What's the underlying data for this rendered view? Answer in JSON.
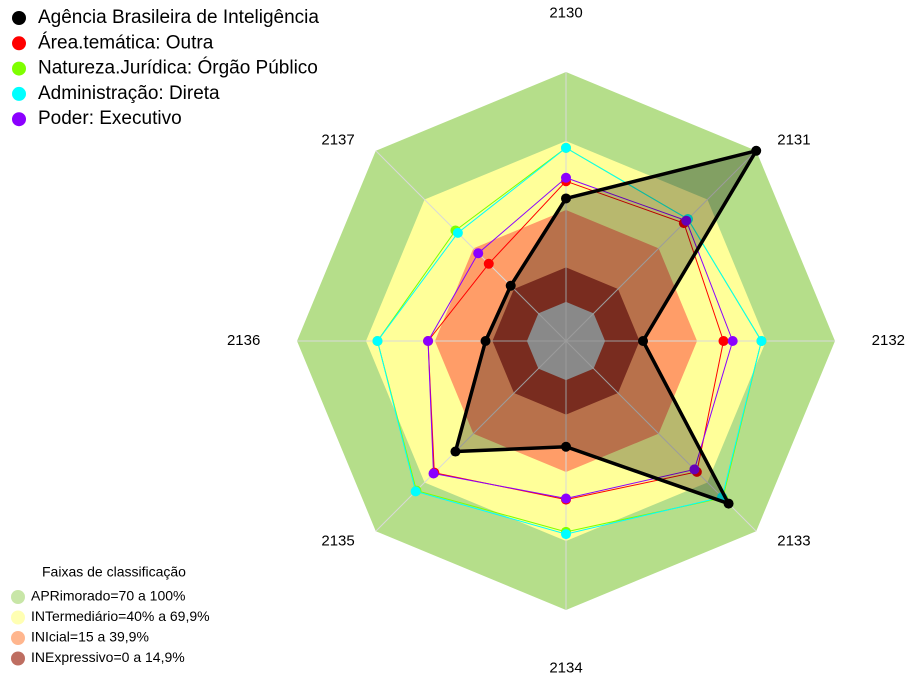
{
  "chart_data": {
    "type": "radar",
    "categories": [
      "2130",
      "2131",
      "2132",
      "2133",
      "2134",
      "2135",
      "2136",
      "2137"
    ],
    "rlim": [
      -17,
      100
    ],
    "series": [
      {
        "name": "Agência Brasileira de Inteligência",
        "color": "#000000",
        "values": [
          45,
          100,
          16.5,
          83,
          29,
          51,
          18,
          17
        ]
      },
      {
        "name": "Área.temática: Outra",
        "color": "#ff0000",
        "values": [
          52.5,
          55.5,
          51.5,
          63.5,
          52,
          64,
          43,
          30.5
        ]
      },
      {
        "name": "Natureza.Jurídica: Órgão Público",
        "color": "#7fff00",
        "values": [
          67,
          58,
          68,
          79.5,
          66,
          75,
          65,
          51
        ]
      },
      {
        "name": "Administração: Direta",
        "color": "#00ffff",
        "values": [
          67,
          58,
          68,
          79,
          67,
          75.5,
          65,
          49.5
        ]
      },
      {
        "name": "Poder: Executivo",
        "color": "#8b00ff",
        "values": [
          54,
          57,
          55.5,
          62,
          51.5,
          64.5,
          43,
          37
        ]
      }
    ],
    "bands_title": "Faixas de classificação",
    "bands": [
      {
        "label": "APRimorado=70 a 100%",
        "min": 70,
        "max": 100,
        "color": "#b5de8a"
      },
      {
        "label": "INTermediário=40% a 69,9%",
        "min": 40,
        "max": 69.9,
        "color": "#ffff99"
      },
      {
        "label": "INIcial=15 a 39,9%",
        "min": 15,
        "max": 39.9,
        "color": "#ff9d68"
      },
      {
        "label": "INExpressivo=0 a 14,9%",
        "min": 0,
        "max": 14.9,
        "color": "#a83e2c"
      }
    ]
  }
}
